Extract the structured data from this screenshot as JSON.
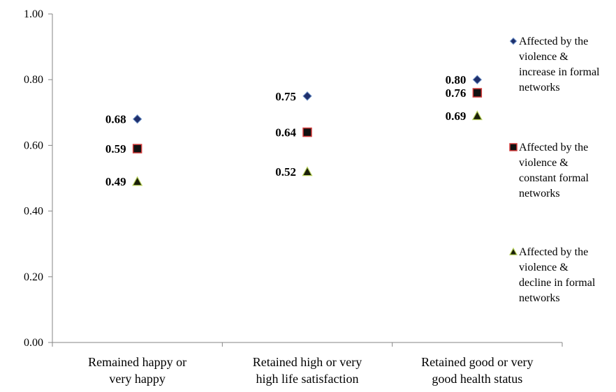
{
  "chart_data": {
    "type": "scatter",
    "categories": [
      [
        "Remained happy or",
        "very happy"
      ],
      [
        "Retained high or very",
        "high life satisfaction"
      ],
      [
        "Retained good or very",
        "good health status"
      ]
    ],
    "series": [
      {
        "name": "Affected by the violence & increase in formal networks",
        "legend_lines": [
          "Affected by the",
          "violence &",
          "increase in formal",
          "networks"
        ],
        "marker": "diamond",
        "fill": "#1f2f6b",
        "stroke": "#6a8fc7",
        "values": [
          0.68,
          0.75,
          0.8
        ],
        "labels": [
          "0.68",
          "0.75",
          "0.80"
        ]
      },
      {
        "name": "Affected by the violence & constant formal networks",
        "legend_lines": [
          "Affected by the",
          "violence &",
          "constant formal",
          "networks"
        ],
        "marker": "square",
        "fill": "#111111",
        "stroke": "#d43b3b",
        "values": [
          0.59,
          0.64,
          0.76
        ],
        "labels": [
          "0.59",
          "0.64",
          "0.76"
        ]
      },
      {
        "name": "Affected by the violence & decline in formal networks",
        "legend_lines": [
          "Affected by the",
          "violence &",
          "decline in formal",
          "networks"
        ],
        "marker": "triangle",
        "fill": "#1a1f0a",
        "stroke": "#b5cf5a",
        "values": [
          0.49,
          0.52,
          0.69
        ],
        "labels": [
          "0.49",
          "0.52",
          "0.69"
        ]
      }
    ],
    "ylim": [
      0,
      1
    ],
    "yticks": [
      0,
      0.2,
      0.4,
      0.6,
      0.8,
      1.0
    ],
    "ytick_labels": [
      "0.00",
      "0.20",
      "0.40",
      "0.60",
      "0.80",
      "1.00"
    ],
    "title": "",
    "xlabel": "",
    "ylabel": "",
    "grid": false,
    "legend_position": "right"
  }
}
